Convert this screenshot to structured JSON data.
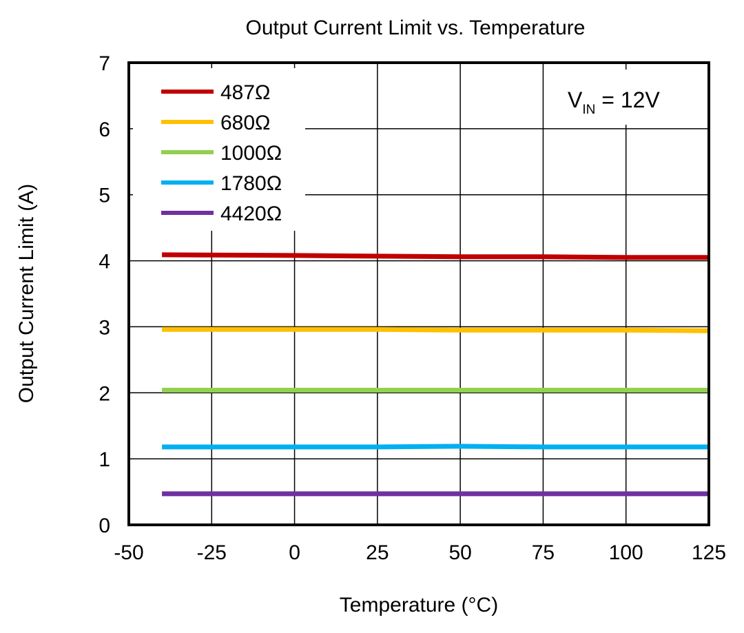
{
  "chart_data": {
    "type": "line",
    "title": "Output Current Limit vs. Temperature",
    "xlabel": "Temperature (°C)",
    "ylabel": "Output Current Limit (A)",
    "xlim": [
      -50,
      125
    ],
    "ylim": [
      0,
      7
    ],
    "xticks": [
      -50,
      -25,
      0,
      25,
      50,
      75,
      100,
      125
    ],
    "yticks": [
      0,
      1,
      2,
      3,
      4,
      5,
      6,
      7
    ],
    "grid": true,
    "legend_position": "top-left",
    "annotation": {
      "main": "V",
      "sub": "IN",
      "tail": " = 12V"
    },
    "series": [
      {
        "name": "487Ω",
        "color": "#c00000",
        "x": [
          -40,
          0,
          25,
          50,
          75,
          100,
          125
        ],
        "y": [
          4.09,
          4.08,
          4.07,
          4.06,
          4.06,
          4.05,
          4.05
        ]
      },
      {
        "name": "680Ω",
        "color": "#ffc000",
        "x": [
          -40,
          0,
          25,
          50,
          75,
          100,
          125
        ],
        "y": [
          2.96,
          2.96,
          2.96,
          2.95,
          2.95,
          2.95,
          2.94
        ]
      },
      {
        "name": "1000Ω",
        "color": "#92d050",
        "x": [
          -40,
          0,
          25,
          50,
          75,
          100,
          125
        ],
        "y": [
          2.04,
          2.04,
          2.04,
          2.04,
          2.04,
          2.04,
          2.04
        ]
      },
      {
        "name": "1780Ω",
        "color": "#00b0f0",
        "x": [
          -40,
          0,
          25,
          50,
          75,
          100,
          125
        ],
        "y": [
          1.18,
          1.18,
          1.18,
          1.19,
          1.18,
          1.18,
          1.18
        ]
      },
      {
        "name": "4420Ω",
        "color": "#7030a0",
        "x": [
          -40,
          0,
          25,
          50,
          75,
          100,
          125
        ],
        "y": [
          0.47,
          0.47,
          0.47,
          0.47,
          0.47,
          0.47,
          0.47
        ]
      }
    ]
  }
}
